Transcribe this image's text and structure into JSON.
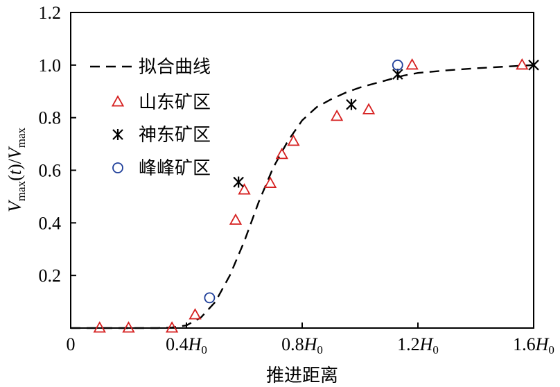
{
  "chart_data": {
    "type": "scatter",
    "xlabel": "推进距离",
    "ylabel": {
      "main": "V",
      "sub": "max",
      "paren": "(t)/",
      "main2": "V",
      "sub2": "max"
    },
    "xlim": [
      0,
      1.6
    ],
    "ylim": [
      0,
      1.2
    ],
    "x_ticks": [
      {
        "value": 0,
        "label": "0",
        "unit": ""
      },
      {
        "value": 0.4,
        "label": "0.4",
        "unit": "H",
        "unit_sub": "0"
      },
      {
        "value": 0.8,
        "label": "0.8",
        "unit": "H",
        "unit_sub": "0"
      },
      {
        "value": 1.2,
        "label": "1.2",
        "unit": "H",
        "unit_sub": "0"
      },
      {
        "value": 1.6,
        "label": "1.6",
        "unit": "H",
        "unit_sub": "0"
      }
    ],
    "y_ticks": [
      {
        "value": 0.2,
        "label": "0.2"
      },
      {
        "value": 0.4,
        "label": "0.4"
      },
      {
        "value": 0.6,
        "label": "0.6"
      },
      {
        "value": 0.8,
        "label": "0.8"
      },
      {
        "value": 1.0,
        "label": "1.0"
      },
      {
        "value": 1.2,
        "label": "1.2"
      }
    ],
    "grid": false,
    "legend_position": "top-left",
    "series": [
      {
        "name": "拟合曲线",
        "style": "dashed-line",
        "color": "#000000",
        "points": [
          [
            0.0,
            0.0
          ],
          [
            0.1,
            0.0
          ],
          [
            0.2,
            0.0
          ],
          [
            0.3,
            0.0
          ],
          [
            0.35,
            0.002
          ],
          [
            0.4,
            0.01
          ],
          [
            0.45,
            0.04
          ],
          [
            0.5,
            0.1
          ],
          [
            0.55,
            0.2
          ],
          [
            0.6,
            0.33
          ],
          [
            0.65,
            0.48
          ],
          [
            0.7,
            0.61
          ],
          [
            0.75,
            0.71
          ],
          [
            0.8,
            0.79
          ],
          [
            0.85,
            0.84
          ],
          [
            0.9,
            0.87
          ],
          [
            0.95,
            0.895
          ],
          [
            1.0,
            0.915
          ],
          [
            1.05,
            0.93
          ],
          [
            1.1,
            0.945
          ],
          [
            1.15,
            0.96
          ],
          [
            1.2,
            0.97
          ],
          [
            1.3,
            0.98
          ],
          [
            1.4,
            0.988
          ],
          [
            1.5,
            0.994
          ],
          [
            1.6,
            1.0
          ]
        ]
      },
      {
        "name": "山东矿区",
        "marker": "triangle",
        "color": "#d62020",
        "points": [
          [
            0.1,
            0.0
          ],
          [
            0.2,
            0.0
          ],
          [
            0.35,
            0.0
          ],
          [
            0.43,
            0.05
          ],
          [
            0.57,
            0.41
          ],
          [
            0.6,
            0.525
          ],
          [
            0.69,
            0.55
          ],
          [
            0.73,
            0.66
          ],
          [
            0.77,
            0.71
          ],
          [
            0.92,
            0.805
          ],
          [
            1.03,
            0.83
          ],
          [
            1.18,
            1.0
          ],
          [
            1.56,
            1.0
          ]
        ]
      },
      {
        "name": "神东矿区",
        "marker": "asterisk",
        "color": "#000000",
        "points": [
          [
            0.58,
            0.555
          ],
          [
            0.97,
            0.85
          ],
          [
            1.13,
            0.965
          ],
          [
            1.6,
            1.0
          ]
        ]
      },
      {
        "name": "峰峰矿区",
        "marker": "circle",
        "color": "#1f3f9a",
        "points": [
          [
            0.48,
            0.115
          ],
          [
            1.13,
            1.0
          ]
        ]
      }
    ]
  }
}
